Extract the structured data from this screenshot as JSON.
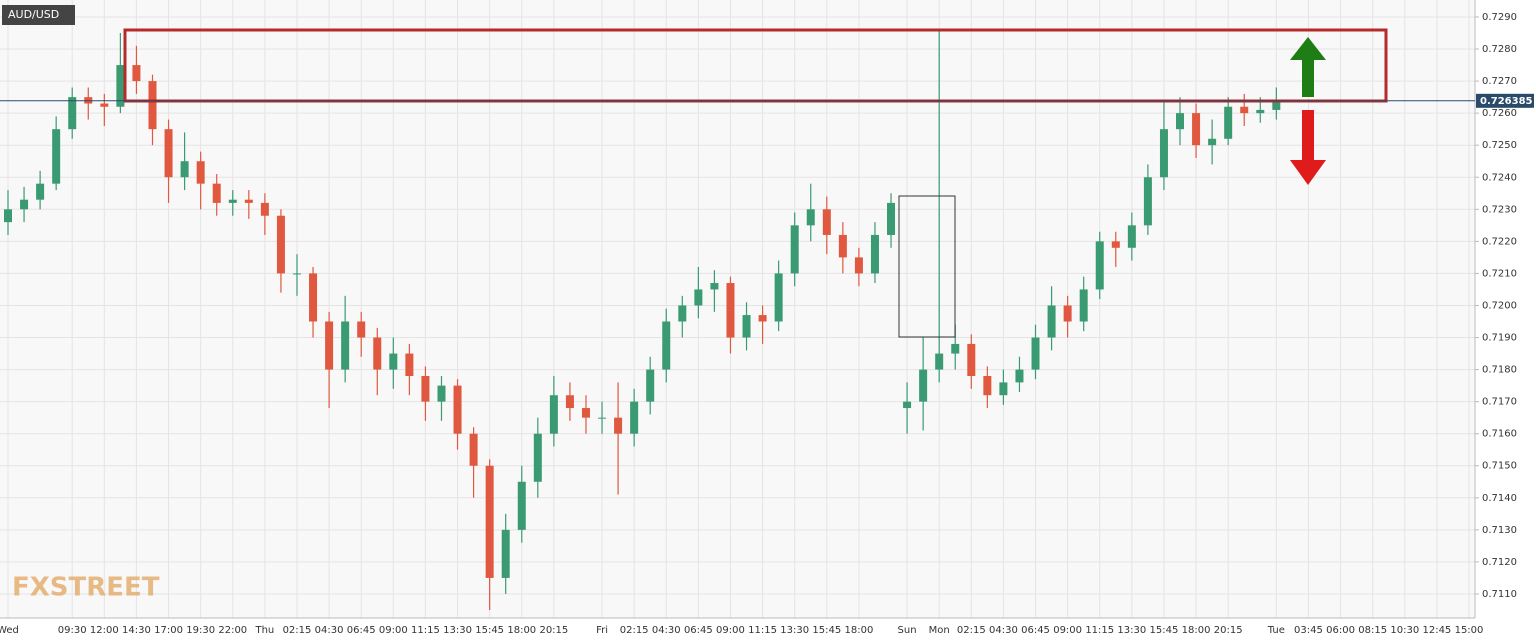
{
  "chart_data": {
    "type": "candlestick",
    "symbol": "AUD/USD",
    "categories": [
      "Wed",
      null,
      null,
      null,
      "09:30",
      null,
      "12:00",
      null,
      "14:30",
      null,
      "17:00",
      null,
      "19:30",
      null,
      "22:00",
      null,
      "Thu",
      null,
      "02:15",
      null,
      "04:30",
      null,
      "06:45",
      null,
      "09:00",
      null,
      "11:15",
      null,
      "13:30",
      null,
      "15:45",
      null,
      "18:00",
      null,
      "20:15",
      null,
      null,
      "Fri",
      null,
      "02:15",
      null,
      "04:30",
      null,
      "06:45",
      null,
      "09:00",
      null,
      "11:15",
      null,
      "13:30",
      null,
      "15:45",
      null,
      "18:00",
      null,
      null,
      "Sun",
      null,
      "Mon",
      null,
      "02:15",
      null,
      "04:30",
      null,
      "06:45",
      null,
      "09:00",
      null,
      "11:15",
      null,
      "13:30",
      null,
      "15:45",
      null,
      "18:00",
      null,
      "20:15",
      null,
      null,
      "Tue",
      null,
      "03:45",
      null,
      "06:00",
      null,
      "08:15",
      null,
      "10:30",
      null,
      "12:45",
      null,
      "15:00"
    ],
    "open": [
      0.7226,
      0.723,
      0.7233,
      0.7238,
      0.7255,
      0.7265,
      0.7263,
      0.7262,
      0.7275,
      0.727,
      0.7255,
      0.724,
      0.7245,
      0.7238,
      0.7232,
      0.7233,
      0.7232,
      0.7228,
      0.721,
      0.721,
      0.7195,
      0.718,
      0.7195,
      0.719,
      0.718,
      0.7185,
      0.7178,
      0.717,
      0.7175,
      0.716,
      0.715,
      0.7115,
      0.713,
      0.7145,
      0.716,
      0.7172,
      0.7168,
      0.7165,
      0.7165,
      0.716,
      0.717,
      0.718,
      0.7195,
      0.72,
      0.7205,
      0.7207,
      0.719,
      0.7197,
      0.7195,
      0.721,
      0.7225,
      0.723,
      0.7222,
      0.7215,
      0.721,
      0.7222,
      0.7168,
      0.717,
      0.718,
      0.7185,
      0.7188,
      0.7178,
      0.7172,
      0.7176,
      0.718,
      0.719,
      0.72,
      0.7195,
      0.7205,
      0.722,
      0.7218,
      0.7225,
      0.724,
      0.7255,
      0.726,
      0.725,
      0.7252,
      0.7262,
      0.726,
      0.7261,
      null,
      null,
      null,
      null,
      null,
      null,
      null,
      null,
      null,
      null,
      null,
      null
    ],
    "high": [
      0.7236,
      0.7237,
      0.7242,
      0.7259,
      0.7268,
      0.7268,
      0.7266,
      0.7285,
      0.7281,
      0.7272,
      0.7258,
      0.7254,
      0.7248,
      0.7241,
      0.7236,
      0.7236,
      0.7235,
      0.723,
      0.7216,
      0.7212,
      0.7198,
      0.7203,
      0.7198,
      0.7193,
      0.719,
      0.7188,
      0.7181,
      0.7178,
      0.7177,
      0.7162,
      0.7152,
      0.7135,
      0.715,
      0.7165,
      0.7178,
      0.7176,
      0.7172,
      0.717,
      0.7176,
      0.7174,
      0.7184,
      0.7199,
      0.7203,
      0.7212,
      0.7211,
      0.7209,
      0.7201,
      0.72,
      0.7214,
      0.7229,
      0.7238,
      0.7234,
      0.7226,
      0.7218,
      0.7226,
      0.7235,
      0.7176,
      0.719,
      0.7286,
      0.7194,
      0.7191,
      0.7181,
      0.718,
      0.7184,
      0.7194,
      0.7206,
      0.7203,
      0.7209,
      0.7223,
      0.7223,
      0.7229,
      0.7244,
      0.7264,
      0.7265,
      0.7263,
      0.7258,
      0.7265,
      0.7266,
      0.7265,
      0.7268,
      null,
      null,
      null,
      null,
      null,
      null,
      null,
      null,
      null,
      null,
      null,
      null
    ],
    "low": [
      0.7222,
      0.7226,
      0.723,
      0.7236,
      0.7252,
      0.7258,
      0.7256,
      0.726,
      0.7266,
      0.725,
      0.7232,
      0.7236,
      0.723,
      0.7228,
      0.7228,
      0.7227,
      0.7222,
      0.7204,
      0.7203,
      0.719,
      0.7168,
      0.7176,
      0.7184,
      0.7172,
      0.7174,
      0.7172,
      0.7164,
      0.7164,
      0.7155,
      0.714,
      0.7105,
      0.711,
      0.7126,
      0.714,
      0.7156,
      0.7164,
      0.716,
      0.716,
      0.7141,
      0.7156,
      0.7166,
      0.7176,
      0.719,
      0.7196,
      0.7198,
      0.7185,
      0.7186,
      0.7188,
      0.7192,
      0.7206,
      0.722,
      0.7216,
      0.721,
      0.7206,
      0.7207,
      0.7218,
      0.716,
      0.7161,
      0.7176,
      0.718,
      0.7174,
      0.7168,
      0.7169,
      0.7173,
      0.7177,
      0.7186,
      0.719,
      0.7192,
      0.7202,
      0.7212,
      0.7214,
      0.7222,
      0.7236,
      0.725,
      0.7246,
      0.7244,
      0.725,
      0.7256,
      0.7257,
      0.7258,
      null,
      null,
      null,
      null,
      null,
      null,
      null,
      null,
      null,
      null,
      null,
      null
    ],
    "close": [
      0.723,
      0.7233,
      0.7238,
      0.7255,
      0.7265,
      0.7263,
      0.7262,
      0.7275,
      0.727,
      0.7255,
      0.724,
      0.7245,
      0.7238,
      0.7232,
      0.7233,
      0.7232,
      0.7228,
      0.721,
      0.721,
      0.7195,
      0.718,
      0.7195,
      0.719,
      0.718,
      0.7185,
      0.7178,
      0.717,
      0.7175,
      0.716,
      0.715,
      0.7115,
      0.713,
      0.7145,
      0.716,
      0.7172,
      0.7168,
      0.7165,
      0.7165,
      0.716,
      0.717,
      0.718,
      0.7195,
      0.72,
      0.7205,
      0.7207,
      0.719,
      0.7197,
      0.7195,
      0.721,
      0.7225,
      0.723,
      0.7222,
      0.7215,
      0.721,
      0.7222,
      0.7232,
      0.717,
      0.718,
      0.7185,
      0.7188,
      0.7178,
      0.7172,
      0.7176,
      0.718,
      0.719,
      0.72,
      0.7195,
      0.7205,
      0.722,
      0.7218,
      0.7225,
      0.724,
      0.7255,
      0.726,
      0.725,
      0.7252,
      0.7262,
      0.726,
      0.7261,
      0.7264,
      null,
      null,
      null,
      null,
      null,
      null,
      null,
      null,
      null,
      null,
      null,
      null
    ],
    "up_color": "#3a9a72",
    "down_color": "#e0583f",
    "ylim": [
      0.71025,
      0.72953
    ],
    "yticks": [
      {
        "value": 0.711,
        "label": "0.7110"
      },
      {
        "value": 0.712,
        "label": "0.7120"
      },
      {
        "value": 0.713,
        "label": "0.7130"
      },
      {
        "value": 0.714,
        "label": "0.7140"
      },
      {
        "value": 0.715,
        "label": "0.7150"
      },
      {
        "value": 0.716,
        "label": "0.7160"
      },
      {
        "value": 0.717,
        "label": "0.7170"
      },
      {
        "value": 0.718,
        "label": "0.7180"
      },
      {
        "value": 0.719,
        "label": "0.7190"
      },
      {
        "value": 0.72,
        "label": "0.7200"
      },
      {
        "value": 0.721,
        "label": "0.7210"
      },
      {
        "value": 0.722,
        "label": "0.7220"
      },
      {
        "value": 0.723,
        "label": "0.7230"
      },
      {
        "value": 0.724,
        "label": "0.7240"
      },
      {
        "value": 0.725,
        "label": "0.7250"
      },
      {
        "value": 0.726,
        "label": "0.7260"
      },
      {
        "value": 0.727,
        "label": "0.7270"
      },
      {
        "value": 0.728,
        "label": "0.7280"
      },
      {
        "value": 0.729,
        "label": "0.7290"
      }
    ],
    "grid": true,
    "last_price": 0.726385
  },
  "logo": "FXSTREET"
}
